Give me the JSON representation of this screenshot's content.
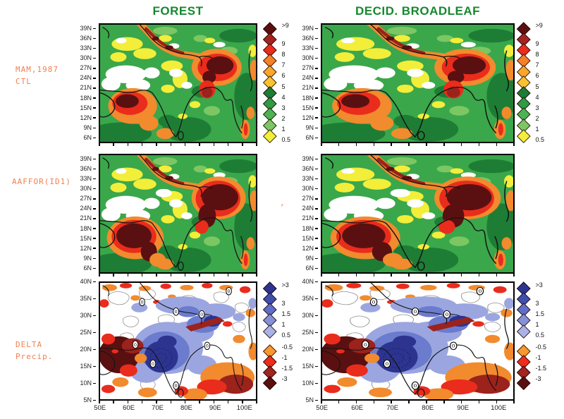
{
  "figure": {
    "column_titles": [
      "FOREST",
      "DECID. BROADLEAF"
    ],
    "row_labels": [
      {
        "lines": [
          "MAM,1987",
          "CTL"
        ]
      },
      {
        "lines": [
          "AAFFOR(ID1)"
        ]
      },
      {
        "lines": [
          "DELTA",
          "Precip."
        ]
      }
    ],
    "stray_mark": ","
  },
  "axes": {
    "lat_rows12": [
      "39N",
      "36N",
      "33N",
      "30N",
      "27N",
      "24N",
      "21N",
      "18N",
      "15N",
      "12N",
      "9N",
      "6N"
    ],
    "lat_row3": [
      "40N",
      "35N",
      "30N",
      "25N",
      "20N",
      "15N",
      "10N",
      "5N"
    ],
    "lon": [
      "50E",
      "60E",
      "70E",
      "80E",
      "90E",
      "100E"
    ]
  },
  "legends": {
    "precip": {
      "levels": [
        {
          "label": ">9",
          "color": "#5a1010"
        },
        {
          "label": "9",
          "color": "#a22420"
        },
        {
          "label": "8",
          "color": "#ea2c1c"
        },
        {
          "label": "7",
          "color": "#f2812a"
        },
        {
          "label": "6",
          "color": "#f8a62c"
        },
        {
          "label": "5",
          "color": "#f9c232"
        },
        {
          "label": "4",
          "color": "#1e7d35"
        },
        {
          "label": "3",
          "color": "#2f9b43"
        },
        {
          "label": "2",
          "color": "#4cb254"
        },
        {
          "label": "1",
          "color": "#7cc763"
        },
        {
          "label": "0.5",
          "color": "#f2ee3a"
        }
      ]
    },
    "delta": {
      "positive_levels": [
        {
          "label": ">3",
          "color": "#2c3490"
        },
        {
          "label": "3",
          "color": "#3f4fae"
        },
        {
          "label": "1.5",
          "color": "#5f6ec6"
        },
        {
          "label": "1",
          "color": "#8591d6"
        },
        {
          "label": "0.5",
          "color": "#aab3e6"
        }
      ],
      "negative_levels": [
        {
          "label": "-0.5",
          "color": "#f8992b"
        },
        {
          "label": "-1",
          "color": "#ee2c1c"
        },
        {
          "label": "-1.5",
          "color": "#a02420"
        },
        {
          "label": "-3",
          "color": "#5a1010"
        }
      ]
    }
  },
  "palette": {
    "green_mid": "#3aa74b",
    "green_dark": "#1e7d35",
    "green_light": "#7cc763",
    "yellow": "#f2ee3a",
    "orange": "#f28a2e",
    "red": "#ea2c1c",
    "brick": "#9c221c",
    "maroon": "#5a1010",
    "navy": "#2c3490",
    "blue_med": "#6b7bcd",
    "lavender": "#9ba6e0",
    "coast": "#141414",
    "contour_gray": "#909090",
    "title_green": "#16882f",
    "label_orange": "#f08050",
    "tick_text": "#222222"
  },
  "map_annotations": {
    "zero_contour_label": "0"
  },
  "chart_data": [
    {
      "type": "heatmap",
      "panel": "row1-col1",
      "column": "FOREST",
      "row": "MAM,1987 CTL",
      "x_ticks": [
        "50E",
        "60E",
        "70E",
        "80E",
        "90E",
        "100E"
      ],
      "y_ticks": [
        "39N",
        "36N",
        "33N",
        "30N",
        "27N",
        "24N",
        "21N",
        "18N",
        "15N",
        "12N",
        "9N",
        "6N"
      ],
      "x_range_deg_east": [
        50,
        105
      ],
      "y_range_deg_north": [
        5,
        40
      ],
      "legend_levels": [
        ">9",
        "9",
        "8",
        "7",
        "6",
        "5",
        "4",
        "3",
        "2",
        "1",
        "0.5"
      ],
      "legend_position": "right",
      "grid": false,
      "high_value_regions": [
        "Himalayan arc orange-to-maroon band (>9)",
        "Northeast India / Bangladesh maroon core",
        "Eastern Arabian Sea off west India: orange-red blob with maroon core"
      ],
      "low_value_regions": [
        "Afghanistan-Pakistan belt white (<0.5)",
        "Northwest and central yellow patches (0.5-1)"
      ]
    },
    {
      "type": "heatmap",
      "panel": "row1-col2",
      "column": "DECID. BROADLEAF",
      "row": "MAM,1987 CTL",
      "x_ticks": [
        "50E",
        "60E",
        "70E",
        "80E",
        "90E",
        "100E"
      ],
      "y_ticks": [
        "39N",
        "36N",
        "33N",
        "30N",
        "27N",
        "24N",
        "21N",
        "18N",
        "15N",
        "12N",
        "9N",
        "6N"
      ],
      "x_range_deg_east": [
        50,
        105
      ],
      "y_range_deg_north": [
        5,
        40
      ],
      "legend_levels": [
        ">9",
        "9",
        "8",
        "7",
        "6",
        "5",
        "4",
        "3",
        "2",
        "1",
        "0.5"
      ],
      "legend_position": "right",
      "grid": false,
      "high_value_regions": [
        "Himalayan arc band",
        "Northeast India maroon blob",
        "Arabian Sea orange-red blob"
      ],
      "low_value_regions": [
        "Afghanistan-Pakistan white belt",
        "Scattered yellow patches"
      ]
    },
    {
      "type": "heatmap",
      "panel": "row2-col1",
      "column": "FOREST",
      "row": "AAFFOR(ID1)",
      "x_ticks": [
        "50E",
        "60E",
        "70E",
        "80E",
        "90E",
        "100E"
      ],
      "y_ticks": [
        "39N",
        "36N",
        "33N",
        "30N",
        "27N",
        "24N",
        "21N",
        "18N",
        "15N",
        "12N",
        "9N",
        "6N"
      ],
      "x_range_deg_east": [
        50,
        105
      ],
      "y_range_deg_north": [
        5,
        40
      ],
      "legend_levels": [
        ">9",
        "9",
        "8",
        "7",
        "6",
        "5",
        "4",
        "3",
        "2",
        "1",
        "0.5"
      ],
      "legend_position": "none (shares row-1 scale)",
      "grid": false,
      "high_value_regions": [
        "Much larger maroon (>9) mass over eastern Arabian Sea / west India",
        "Enlarged maroon region over northeast India extending east",
        "Himalayan arc band"
      ],
      "low_value_regions": [
        "Afghanistan-Pakistan white belt"
      ]
    },
    {
      "type": "heatmap",
      "panel": "row2-col2",
      "column": "DECID. BROADLEAF",
      "row": "AAFFOR(ID1)",
      "x_ticks": [
        "50E",
        "60E",
        "70E",
        "80E",
        "90E",
        "100E"
      ],
      "y_ticks": [
        "39N",
        "36N",
        "33N",
        "30N",
        "27N",
        "24N",
        "21N",
        "18N",
        "15N",
        "12N",
        "9N",
        "6N"
      ],
      "x_range_deg_east": [
        50,
        105
      ],
      "y_range_deg_north": [
        5,
        40
      ],
      "legend_levels": [
        ">9",
        "9",
        "8",
        "7",
        "6",
        "5",
        "4",
        "3",
        "2",
        "1",
        "0.5"
      ],
      "legend_position": "none (shares row-1 scale)",
      "grid": false,
      "high_value_regions": [
        "Large Arabian Sea maroon mass",
        "Enlarged northeast India maroon blob reaching east edge"
      ],
      "low_value_regions": [
        "Afghanistan-Pakistan white belt"
      ]
    },
    {
      "type": "heatmap",
      "panel": "row3-col1",
      "column": "FOREST",
      "row": "DELTA Precip.",
      "x_ticks": [
        "50E",
        "60E",
        "70E",
        "80E",
        "90E",
        "100E"
      ],
      "y_ticks": [
        "40N",
        "35N",
        "30N",
        "25N",
        "20N",
        "15N",
        "10N",
        "5N"
      ],
      "x_range_deg_east": [
        50,
        105
      ],
      "y_range_deg_north": [
        5,
        40
      ],
      "legend_levels": [
        ">3",
        "3",
        "1.5",
        "1",
        "0.5",
        "-0.5",
        "-1",
        "-1.5",
        "-3"
      ],
      "legend_position": "right",
      "grid": false,
      "positive_regions": [
        "Broad blue increase over central/NW India and Tibet with navy (>3) core over the eastern Arabian Sea ~70E,10-20N",
        "Blue patch over Bangladesh/NE India"
      ],
      "negative_regions": [
        "Dark maroon (-3) decrease over Arabia ~50-62E,12-22N",
        "Orange-red decreases scattered along 30-40N",
        "Red-orange band across the south and southeast (5-15N, 80-105E)",
        "Thin dark-red streak ~25N, 85-95E"
      ],
      "zero_contour_labels": "0"
    },
    {
      "type": "heatmap",
      "panel": "row3-col2",
      "column": "DECID. BROADLEAF",
      "row": "DELTA Precip.",
      "x_ticks": [
        "50E",
        "60E",
        "70E",
        "80E",
        "90E",
        "100E"
      ],
      "y_ticks": [
        "40N",
        "35N",
        "30N",
        "25N",
        "20N",
        "15N",
        "10N",
        "5N"
      ],
      "x_range_deg_east": [
        50,
        105
      ],
      "y_range_deg_north": [
        5,
        40
      ],
      "legend_levels": [
        ">3",
        "3",
        "1.5",
        "1",
        "0.5",
        "-0.5",
        "-1",
        "-1.5",
        "-3"
      ],
      "legend_position": "right",
      "grid": false,
      "positive_regions": [
        "Blue swath from NW India across the Gangetic plain to the Bay of Bengal with navy core near 70E,10-20N"
      ],
      "negative_regions": [
        "Dark maroon blob over Arabia",
        "Warm scatter along northern edge",
        "Red-orange across the far south",
        "Dark-red streak near 25N, 85-95E"
      ],
      "zero_contour_labels": "0"
    }
  ]
}
